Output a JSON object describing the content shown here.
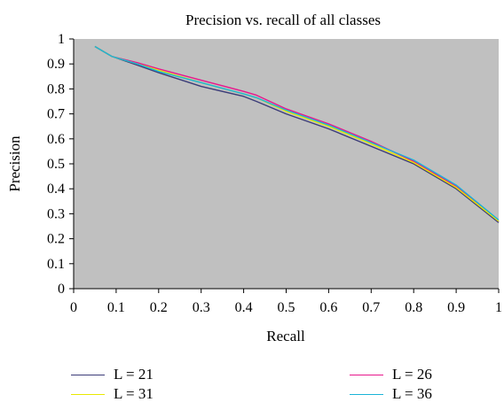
{
  "chart_data": {
    "type": "line",
    "title": "Precision vs. recall of all classes",
    "xlabel": "Recall",
    "ylabel": "Precision",
    "xlim": [
      0,
      1
    ],
    "ylim": [
      0,
      1
    ],
    "xticks": [
      "0",
      "0.1",
      "0.2",
      "0.3",
      "0.4",
      "0.5",
      "0.6",
      "0.7",
      "0.8",
      "0.9",
      "1"
    ],
    "yticks": [
      "0",
      "0.1",
      "0.2",
      "0.3",
      "0.4",
      "0.5",
      "0.6",
      "0.7",
      "0.8",
      "0.9",
      "1"
    ],
    "grid": false,
    "plot_background": "#c0c0c0",
    "legend_position": "bottom",
    "series": [
      {
        "name": "L = 21",
        "color": "#3c3c78",
        "x": [
          0.05,
          0.09,
          0.15,
          0.2,
          0.3,
          0.4,
          0.43,
          0.5,
          0.6,
          0.7,
          0.8,
          0.9,
          1.0
        ],
        "y": [
          0.97,
          0.93,
          0.895,
          0.865,
          0.81,
          0.77,
          0.75,
          0.7,
          0.64,
          0.57,
          0.5,
          0.4,
          0.265
        ]
      },
      {
        "name": "L = 26",
        "color": "#e8168c",
        "x": [
          0.05,
          0.09,
          0.15,
          0.2,
          0.3,
          0.4,
          0.43,
          0.5,
          0.6,
          0.7,
          0.8,
          0.9,
          1.0
        ],
        "y": [
          0.97,
          0.93,
          0.905,
          0.88,
          0.835,
          0.79,
          0.775,
          0.72,
          0.66,
          0.59,
          0.51,
          0.41,
          0.27
        ]
      },
      {
        "name": "L = 31",
        "color": "#e8e800",
        "x": [
          0.05,
          0.09,
          0.15,
          0.2,
          0.3,
          0.4,
          0.43,
          0.5,
          0.6,
          0.7,
          0.8,
          0.9,
          1.0
        ],
        "y": [
          0.97,
          0.93,
          0.9,
          0.875,
          0.825,
          0.78,
          0.765,
          0.71,
          0.65,
          0.58,
          0.505,
          0.405,
          0.27
        ]
      },
      {
        "name": "L = 36",
        "color": "#1ab4d8",
        "x": [
          0.05,
          0.09,
          0.15,
          0.2,
          0.3,
          0.4,
          0.43,
          0.5,
          0.6,
          0.7,
          0.8,
          0.9,
          1.0
        ],
        "y": [
          0.97,
          0.93,
          0.9,
          0.87,
          0.825,
          0.78,
          0.765,
          0.715,
          0.655,
          0.585,
          0.515,
          0.415,
          0.275
        ]
      }
    ],
    "legend_order": [
      0,
      1,
      2,
      3
    ]
  }
}
